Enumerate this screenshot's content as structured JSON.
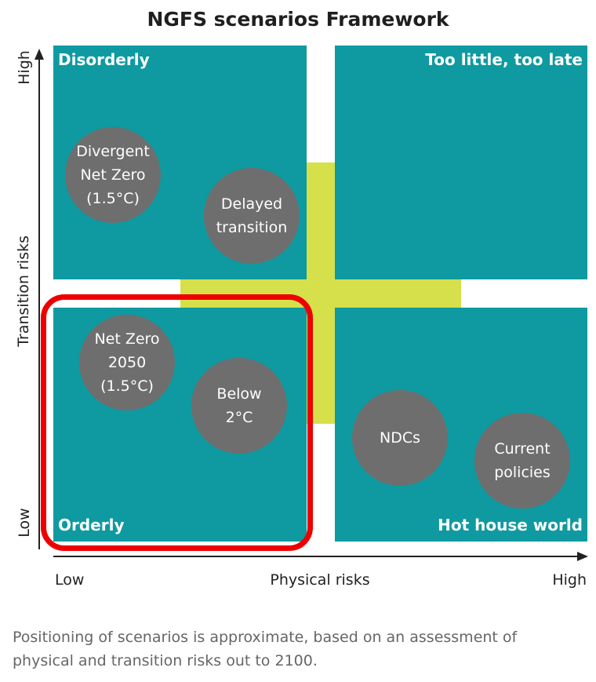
{
  "title": "NGFS scenarios Framework",
  "quadrants": {
    "disorderly": "Disorderly",
    "too_little": "Too little, too late",
    "orderly": "Orderly",
    "hot_house": "Hot house world"
  },
  "scenarios": {
    "divergent": "Divergent\nNet Zero\n(1.5°C)",
    "delayed": "Delayed\ntransition",
    "net_zero": "Net Zero\n2050\n(1.5°C)",
    "below2": "Below\n2°C",
    "ndcs": "NDCs",
    "current": "Current\npolicies"
  },
  "axes": {
    "y_label": "Transition risks",
    "y_high": "High",
    "y_low": "Low",
    "x_label": "Physical risks",
    "x_low": "Low",
    "x_high": "High"
  },
  "note": "Positioning of scenarios is approximate, based on an assessment of physical and transition risks out to 2100.",
  "colors": {
    "quadrant": "#0e9aa0",
    "cross": "#d6e04a",
    "circle": "#6e6e6e",
    "highlight": "#ee0000"
  }
}
